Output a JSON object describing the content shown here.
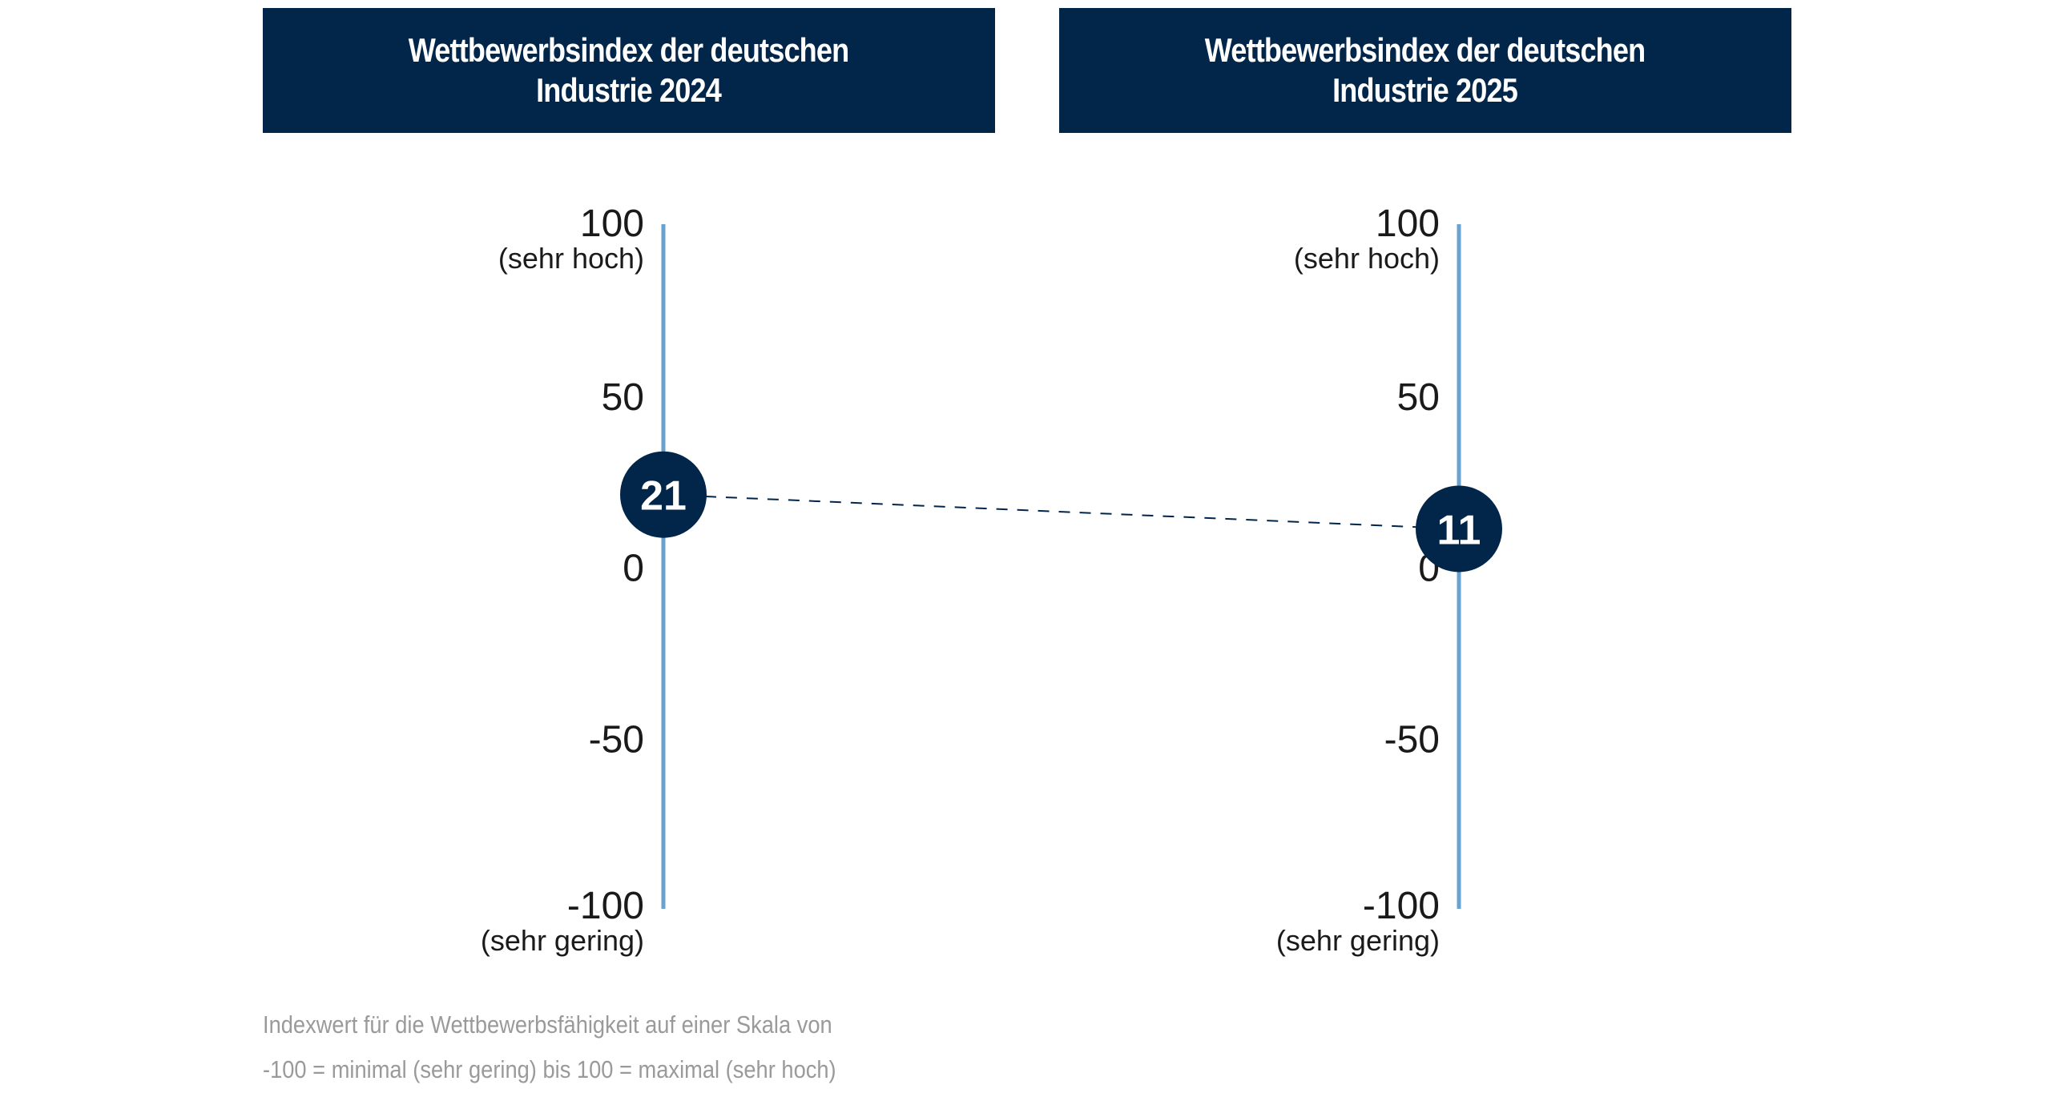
{
  "colors": {
    "banner": "#02264a",
    "axis": "#6aa2cf",
    "marker": "#02264a",
    "connector": "#02264a"
  },
  "chart_data": {
    "type": "scatter",
    "title": "Wettbewerbsindex der deutschen Industrie",
    "panels": [
      {
        "title_line1": "Wettbewerbsindex der deutschen",
        "title_line2": "Industrie 2024",
        "year": 2024,
        "value": 21
      },
      {
        "title_line1": "Wettbewerbsindex der deutschen",
        "title_line2": "Industrie 2025",
        "year": 2025,
        "value": 11
      }
    ],
    "ylim": [
      -100,
      100
    ],
    "yticks": [
      100,
      50,
      0,
      -50,
      -100
    ],
    "ytick_labels": [
      "100",
      "50",
      "0",
      "-50",
      "-100"
    ],
    "top_annotation": "(sehr hoch)",
    "bottom_annotation": "(sehr gering)",
    "connector": "dashed",
    "grid": false
  },
  "footnote": {
    "line1": "Indexwert für die Wettbewerbsfähigkeit auf einer Skala von",
    "line2": "-100 = minimal (sehr gering) bis 100 = maximal (sehr hoch)"
  }
}
